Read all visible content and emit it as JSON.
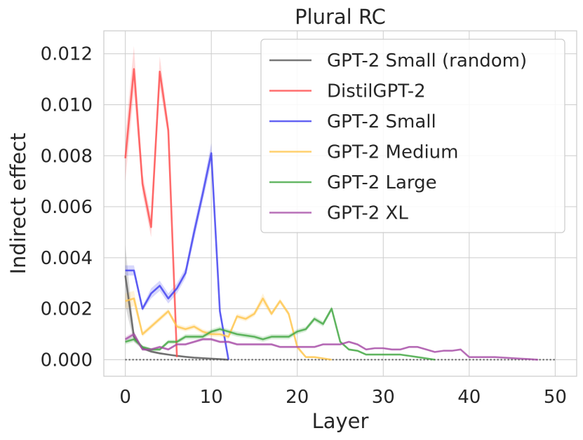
{
  "chart_data": {
    "type": "line",
    "title": "Plural RC",
    "xlabel": "Layer",
    "ylabel": "Indirect effect",
    "xlim": [
      -2.5,
      52.5
    ],
    "ylim": [
      -0.00065,
      0.0129
    ],
    "xticks": [
      0,
      10,
      20,
      30,
      40,
      50
    ],
    "yticks": [
      0.0,
      0.002,
      0.004,
      0.006,
      0.008,
      0.01,
      0.012
    ],
    "ytick_labels": [
      "0.000",
      "0.002",
      "0.004",
      "0.006",
      "0.008",
      "0.010",
      "0.012"
    ],
    "grid": true,
    "legend_position": "top-right",
    "series": [
      {
        "name": "GPT-2 Small (random)",
        "color": "#555555",
        "x": [
          0,
          1,
          2,
          3,
          4,
          5,
          6,
          7,
          8,
          9,
          10,
          11,
          12
        ],
        "y": [
          0.0033,
          0.0009,
          0.00045,
          0.00032,
          0.00025,
          0.0002,
          0.00015,
          0.00011,
          8e-05,
          6e-05,
          4e-05,
          2e-05,
          0.0
        ],
        "band": [
          0.0012,
          0.0002,
          6e-05,
          5e-05,
          4e-05,
          3e-05,
          2e-05,
          2e-05,
          1e-05,
          1e-05,
          1e-05,
          1e-05,
          0.0
        ]
      },
      {
        "name": "DistilGPT-2",
        "color": "#ff4a4a",
        "x": [
          0,
          1,
          2,
          3,
          4,
          5,
          6
        ],
        "y": [
          0.0079,
          0.0114,
          0.0069,
          0.0052,
          0.0113,
          0.009,
          0.0001
        ],
        "band": [
          0.0009,
          0.0009,
          0.0004,
          0.0004,
          0.0006,
          0.0003,
          0.0
        ]
      },
      {
        "name": "GPT-2 Small",
        "color": "#3c3cf0",
        "x": [
          0,
          1,
          2,
          3,
          4,
          5,
          6,
          7,
          8,
          9,
          10,
          11,
          12
        ],
        "y": [
          0.0035,
          0.0035,
          0.002,
          0.0026,
          0.0029,
          0.0024,
          0.0028,
          0.0034,
          0.005,
          0.0065,
          0.0081,
          0.0019,
          0.0
        ],
        "band": [
          0.0002,
          0.0002,
          0.0001,
          0.0002,
          0.0002,
          0.0002,
          0.0002,
          0.0002,
          0.0003,
          0.0003,
          0.0004,
          0.0002,
          0.0
        ]
      },
      {
        "name": "GPT-2 Medium",
        "color": "#ffc44a",
        "x": [
          0,
          1,
          2,
          3,
          4,
          5,
          6,
          7,
          8,
          9,
          10,
          11,
          12,
          13,
          14,
          15,
          16,
          17,
          18,
          19,
          20,
          21,
          22,
          23,
          24
        ],
        "y": [
          0.0023,
          0.0024,
          0.001,
          0.0013,
          0.0016,
          0.0019,
          0.0013,
          0.0012,
          0.0013,
          0.0011,
          0.001,
          0.001,
          0.0009,
          0.0017,
          0.0016,
          0.0018,
          0.0024,
          0.0018,
          0.0023,
          0.0018,
          0.0005,
          0.0001,
          0.0001,
          5e-05,
          0.0
        ],
        "band": [
          0.0003,
          0.0003,
          0.0001,
          0.0001,
          0.0001,
          0.0001,
          0.0001,
          0.0001,
          0.0001,
          0.0001,
          0.0001,
          0.0001,
          0.0001,
          0.0001,
          0.0001,
          0.0001,
          0.0002,
          0.0001,
          0.0001,
          0.0001,
          0.0001,
          3e-05,
          3e-05,
          2e-05,
          0.0
        ]
      },
      {
        "name": "GPT-2 Large",
        "color": "#3ea53e",
        "x": [
          0,
          1,
          2,
          3,
          4,
          5,
          6,
          7,
          8,
          9,
          10,
          11,
          12,
          13,
          14,
          15,
          16,
          17,
          18,
          19,
          20,
          21,
          22,
          23,
          24,
          25,
          26,
          27,
          28,
          29,
          30,
          31,
          32,
          33,
          34,
          35,
          36
        ],
        "y": [
          0.0007,
          0.0008,
          0.0005,
          0.0004,
          0.0004,
          0.0007,
          0.0007,
          0.0009,
          0.0009,
          0.0009,
          0.0011,
          0.0012,
          0.0011,
          0.001,
          0.00095,
          0.0009,
          0.0008,
          0.0009,
          0.0009,
          0.0009,
          0.0011,
          0.0012,
          0.0016,
          0.0014,
          0.002,
          0.0007,
          0.0004,
          0.00035,
          0.0002,
          0.0002,
          0.0002,
          0.0002,
          0.0002,
          0.00015,
          0.0001,
          5e-05,
          0.0
        ],
        "band": [
          0.0001,
          0.0001,
          6e-05,
          6e-05,
          6e-05,
          8e-05,
          8e-05,
          0.0001,
          0.0001,
          0.0001,
          0.0001,
          0.0001,
          0.0001,
          0.0001,
          0.0001,
          0.0001,
          0.0001,
          0.0001,
          0.0001,
          0.0001,
          0.0001,
          0.0001,
          0.0001,
          0.0001,
          0.0001,
          5e-05,
          4e-05,
          3e-05,
          2e-05,
          2e-05,
          2e-05,
          2e-05,
          2e-05,
          2e-05,
          1e-05,
          1e-05,
          0.0
        ]
      },
      {
        "name": "GPT-2 XL",
        "color": "#a64ca6",
        "x": [
          0,
          1,
          2,
          3,
          4,
          5,
          6,
          7,
          8,
          9,
          10,
          11,
          12,
          13,
          14,
          15,
          16,
          17,
          18,
          19,
          20,
          21,
          22,
          23,
          24,
          25,
          26,
          27,
          28,
          29,
          30,
          31,
          32,
          33,
          34,
          35,
          36,
          37,
          38,
          39,
          40,
          41,
          42,
          43,
          44,
          45,
          46,
          47,
          48
        ],
        "y": [
          0.0008,
          0.001,
          0.0004,
          0.0004,
          0.0005,
          0.0004,
          0.0006,
          0.0006,
          0.0007,
          0.0008,
          0.0008,
          0.0007,
          0.0007,
          0.0006,
          0.0006,
          0.0006,
          0.0006,
          0.0006,
          0.0005,
          0.0005,
          0.0005,
          0.0005,
          0.0005,
          0.0006,
          0.0006,
          0.0006,
          0.0007,
          0.0006,
          0.0004,
          0.00045,
          0.00045,
          0.0004,
          0.0004,
          0.0005,
          0.0005,
          0.0004,
          0.0003,
          0.00035,
          0.00035,
          0.0004,
          0.0001,
          0.0001,
          0.0001,
          0.0001,
          8e-05,
          6e-05,
          4e-05,
          2e-05,
          0.0
        ],
        "band": [
          0.0001,
          0.0001,
          5e-05,
          5e-05,
          5e-05,
          5e-05,
          5e-05,
          5e-05,
          5e-05,
          6e-05,
          6e-05,
          5e-05,
          5e-05,
          5e-05,
          5e-05,
          5e-05,
          5e-05,
          5e-05,
          4e-05,
          4e-05,
          4e-05,
          4e-05,
          4e-05,
          4e-05,
          4e-05,
          4e-05,
          4e-05,
          4e-05,
          3e-05,
          3e-05,
          3e-05,
          3e-05,
          3e-05,
          3e-05,
          3e-05,
          3e-05,
          2e-05,
          2e-05,
          2e-05,
          2e-05,
          1e-05,
          1e-05,
          1e-05,
          1e-05,
          1e-05,
          1e-05,
          1e-05,
          1e-05,
          0.0
        ]
      }
    ],
    "reference_line": {
      "y": 0.0,
      "x_from": 0,
      "x_to": 50,
      "style": "dotted",
      "color": "#555555"
    }
  }
}
